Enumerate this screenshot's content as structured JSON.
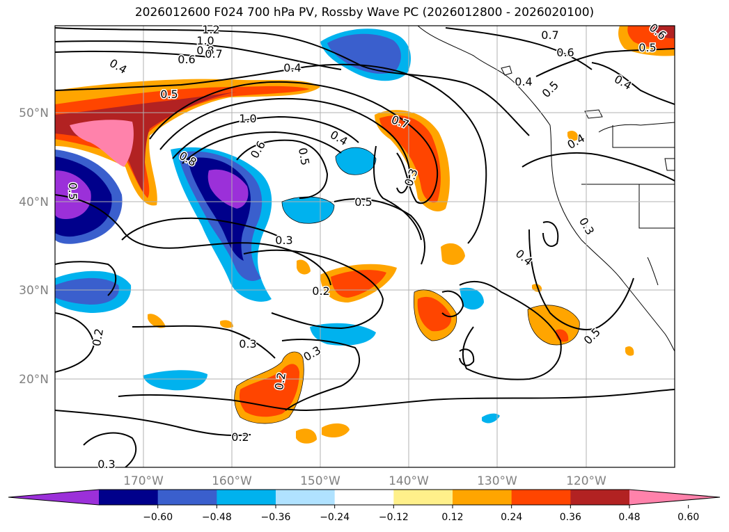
{
  "title": "2026012600 F024 700 hPa PV, Rossby Wave PC (2026012800 - 2026020100)",
  "lat_labels": [
    "50°N",
    "40°N",
    "30°N",
    "20°N"
  ],
  "lon_labels": [
    "170°W",
    "160°W",
    "150°W",
    "140°W",
    "130°W",
    "120°W"
  ],
  "colorbar": {
    "colors": [
      "#9b30d9",
      "#00008b",
      "#3a5fcd",
      "#00b2ee",
      "#b0e2ff",
      "#ffffff",
      "#fff08a",
      "#ffa500",
      "#ff4500",
      "#b22222",
      "#ff82ab"
    ],
    "tick_labels": [
      "-0.60",
      "-0.48",
      "-0.36",
      "-0.24",
      "-0.12",
      "0.12",
      "0.24",
      "0.36",
      "0.48",
      "0.60"
    ]
  },
  "contour_labels": [
    {
      "text": "1.2"
    },
    {
      "text": "1.0"
    },
    {
      "text": "0.8"
    },
    {
      "text": "0.7"
    },
    {
      "text": "0.6"
    },
    {
      "text": "0.4"
    },
    {
      "text": "0.4"
    },
    {
      "text": "0.5"
    },
    {
      "text": "1.0"
    },
    {
      "text": "0.7"
    },
    {
      "text": "0.4"
    },
    {
      "text": "0.8"
    },
    {
      "text": "0.6"
    },
    {
      "text": "0.5"
    },
    {
      "text": "0.3"
    },
    {
      "text": "0.5"
    },
    {
      "text": "0.5"
    },
    {
      "text": "0.3"
    },
    {
      "text": "0.2"
    },
    {
      "text": "0.2"
    },
    {
      "text": "0.3"
    },
    {
      "text": "0.3"
    },
    {
      "text": "0.2"
    },
    {
      "text": "0.2"
    },
    {
      "text": "0.3"
    },
    {
      "text": "0.7"
    },
    {
      "text": "0.6"
    },
    {
      "text": "0.4"
    },
    {
      "text": "0.5"
    },
    {
      "text": "0.4"
    },
    {
      "text": "0.4"
    },
    {
      "text": "0.3"
    },
    {
      "text": "0.4"
    },
    {
      "text": "0.5"
    },
    {
      "text": "0.6"
    },
    {
      "text": "0.5"
    }
  ]
}
